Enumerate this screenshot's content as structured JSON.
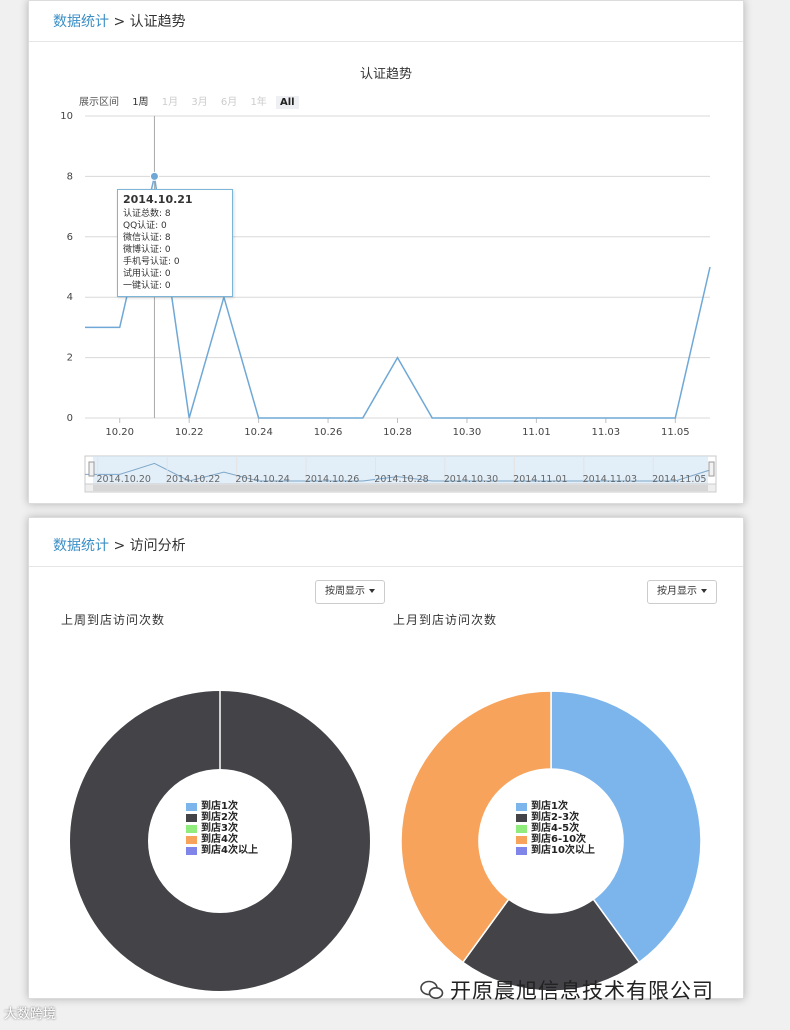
{
  "panel1": {
    "breadcrumb_root": "数据统计",
    "breadcrumb_sep": ">",
    "breadcrumb_current": "认证趋势",
    "chart_title": "认证趋势",
    "range_label": "展示区间",
    "range_options": [
      "1周",
      "1月",
      "3月",
      "6月",
      "1年",
      "All"
    ],
    "range_selected": "All",
    "tooltip": {
      "date": "2014.10.21",
      "rows": [
        "认证总数: 8",
        "QQ认证: 0",
        "微信认证: 8",
        "微博认证: 0",
        "手机号认证: 0",
        "试用认证: 0",
        "一键认证: 0"
      ]
    },
    "navigator_labels": [
      "2014.10.20",
      "2014.10.22",
      "2014.10.24",
      "2014.10.26",
      "2014.10.28",
      "2014.10.30",
      "2014.11.01",
      "2014.11.03",
      "2014.11.05"
    ]
  },
  "panel2": {
    "breadcrumb_root": "数据统计",
    "breadcrumb_sep": ">",
    "breadcrumb_current": "访问分析",
    "btn_week": "按周显示",
    "btn_month": "按月显示",
    "title_week": "上周到店访问次数",
    "title_month": "上月到店访问次数",
    "legend_week": [
      "到店1次",
      "到店2次",
      "到店3次",
      "到店4次",
      "到店4次以上"
    ],
    "legend_month": [
      "到店1次",
      "到店2-3次",
      "到店4-5次",
      "到店6-10次",
      "到店10次以上"
    ]
  },
  "colors": {
    "line": "#6fa8d6",
    "c1": "#7cb5ec",
    "c2": "#434348",
    "c3": "#90ed7d",
    "c4": "#f7a35c",
    "c5": "#8085e9"
  },
  "watermark_left": "大数跨境",
  "watermark_right": "开原晨旭信息技术有限公司",
  "chart_data": [
    {
      "type": "line",
      "title": "认证趋势",
      "x": [
        "10.19",
        "10.20",
        "10.21",
        "10.22",
        "10.23",
        "10.24",
        "10.25",
        "10.26",
        "10.27",
        "10.28",
        "10.29",
        "10.30",
        "10.31",
        "11.01",
        "11.02",
        "11.03",
        "11.04",
        "11.05",
        "11.06"
      ],
      "xticks": [
        "10.20",
        "10.22",
        "10.24",
        "10.26",
        "10.28",
        "10.30",
        "11.01",
        "11.03",
        "11.05"
      ],
      "y": [
        3,
        3,
        8,
        0,
        4,
        0,
        0,
        0,
        0,
        2,
        0,
        0,
        0,
        0,
        0,
        0,
        0,
        0,
        5
      ],
      "ylim": [
        0,
        10
      ],
      "yticks": [
        0,
        2,
        4,
        6,
        8,
        10
      ],
      "grid": true
    },
    {
      "type": "pie",
      "title": "上周到店访问次数",
      "labels": [
        "到店1次",
        "到店2次",
        "到店3次",
        "到店4次",
        "到店4次以上"
      ],
      "values": [
        0,
        100,
        0,
        0,
        0
      ]
    },
    {
      "type": "pie",
      "title": "上月到店访问次数",
      "labels": [
        "到店1次",
        "到店2-3次",
        "到店4-5次",
        "到店6-10次",
        "到店10次以上"
      ],
      "values": [
        40,
        20,
        0,
        40,
        0
      ]
    }
  ]
}
